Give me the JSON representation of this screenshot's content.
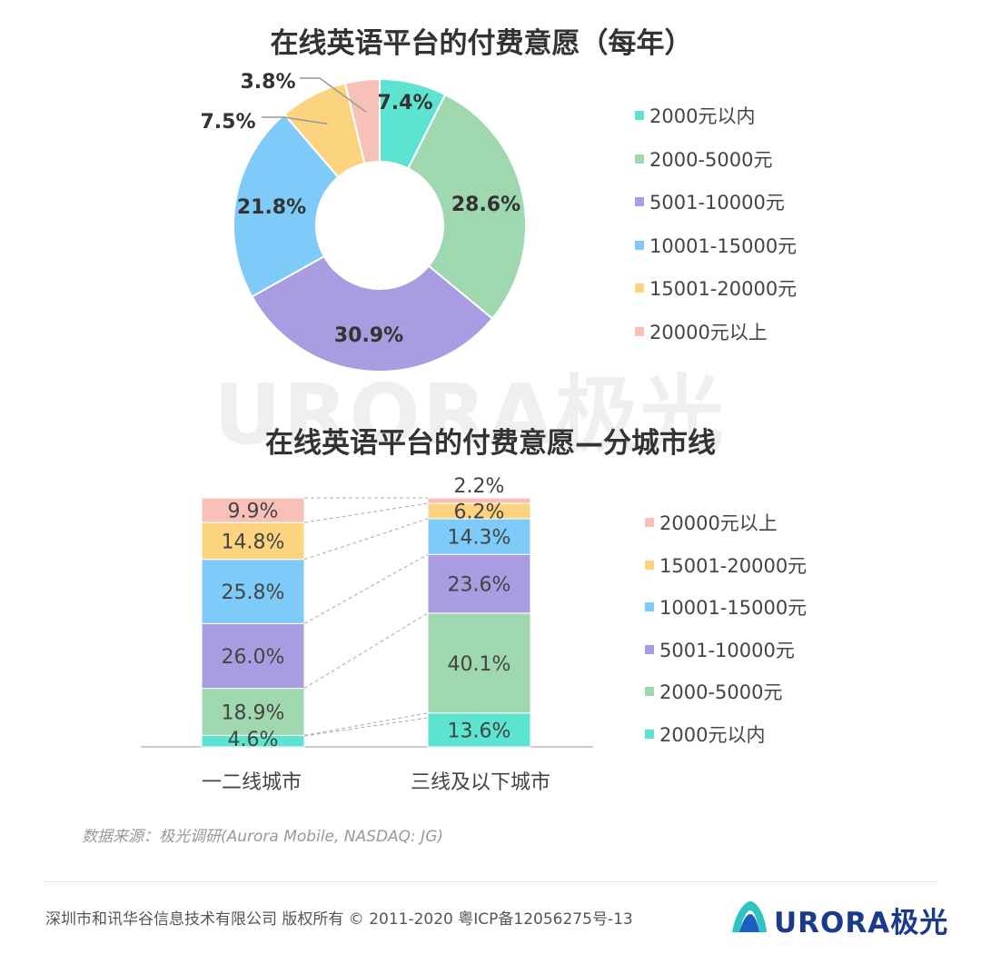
{
  "watermark": "URORA极光",
  "colors": {
    "c1": "#5ce4d0",
    "c2": "#9fd7af",
    "c3": "#a99ce0",
    "c4": "#7ecbfa",
    "c5": "#fcd47f",
    "c6": "#f8c1b8"
  },
  "chart_data": [
    {
      "type": "pie",
      "title": "在线英语平台的付费意愿（每年）",
      "donut": true,
      "categories": [
        "2000元以内",
        "2000-5000元",
        "5001-10000元",
        "10001-15000元",
        "15001-20000元",
        "20000元以上"
      ],
      "values": [
        7.4,
        28.6,
        30.9,
        21.8,
        7.5,
        3.8
      ],
      "labels": [
        "7.4%",
        "28.6%",
        "30.9%",
        "21.8%",
        "7.5%",
        "3.8%"
      ],
      "legend_position": "right"
    },
    {
      "type": "bar",
      "stacked": true,
      "title": "在线英语平台的付费意愿—分城市线",
      "categories": [
        "一二线城市",
        "三线及以下城市"
      ],
      "series": [
        {
          "name": "2000元以内",
          "values": [
            4.6,
            13.6
          ],
          "labels": [
            "4.6%",
            "13.6%"
          ]
        },
        {
          "name": "2000-5000元",
          "values": [
            18.9,
            40.1
          ],
          "labels": [
            "18.9%",
            "40.1%"
          ]
        },
        {
          "name": "5001-10000元",
          "values": [
            26.0,
            23.6
          ],
          "labels": [
            "26.0%",
            "23.6%"
          ]
        },
        {
          "name": "10001-15000元",
          "values": [
            25.8,
            14.3
          ],
          "labels": [
            "25.8%",
            "14.3%"
          ]
        },
        {
          "name": "15001-20000元",
          "values": [
            14.8,
            6.2
          ],
          "labels": [
            "14.8%",
            "6.2%"
          ]
        },
        {
          "name": "20000元以上",
          "values": [
            9.9,
            2.2
          ],
          "labels": [
            "9.9%",
            "2.2%"
          ]
        }
      ],
      "legend_position": "right",
      "legend_order": [
        "20000元以上",
        "15001-20000元",
        "10001-15000元",
        "5001-10000元",
        "2000-5000元",
        "2000元以内"
      ]
    }
  ],
  "source": "数据来源：极光调研(Aurora Mobile, NASDAQ: JG)",
  "footer": "深圳市和讯华谷信息技术有限公司 版权所有 © 2011-2020 粤ICP备12056275号-13",
  "logo_text": "URORA极光"
}
